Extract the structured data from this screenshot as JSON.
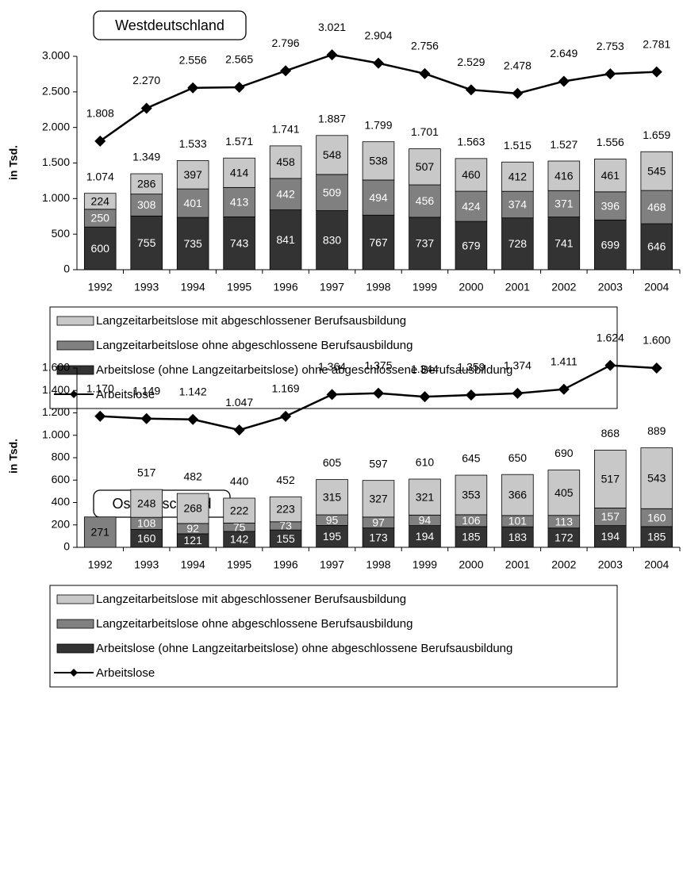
{
  "chart_data": [
    {
      "type": "bar",
      "title": "Westdeutschland",
      "y_label": "in Tsd.",
      "categories": [
        "1992",
        "1993",
        "1994",
        "1995",
        "1996",
        "1997",
        "1998",
        "1999",
        "2000",
        "2001",
        "2002",
        "2003",
        "2004"
      ],
      "series": [
        {
          "name": "Arbeitslose (ohne Langzeitarbeitslose) ohne abgeschlossene Berufsausbildung",
          "color": "#333333",
          "values": [
            600,
            755,
            735,
            743,
            841,
            830,
            767,
            737,
            679,
            728,
            741,
            699,
            646
          ]
        },
        {
          "name": "Langzeitarbeitslose ohne abgeschlossene Berufsausbildung",
          "color": "#808080",
          "values": [
            250,
            308,
            401,
            413,
            442,
            509,
            494,
            456,
            424,
            374,
            371,
            396,
            468
          ]
        },
        {
          "name": "Langzeitarbeitslose mit abgeschlossener Berufsausbildung",
          "color": "#c8c8c8",
          "values": [
            224,
            286,
            397,
            414,
            458,
            548,
            538,
            507,
            460,
            412,
            416,
            461,
            545
          ]
        },
        {
          "name": "Arbeitslose",
          "type": "line",
          "color": "#000000",
          "values": [
            1808,
            2270,
            2556,
            2565,
            2796,
            3021,
            2904,
            2756,
            2529,
            2478,
            2649,
            2753,
            2781
          ],
          "value_labels": [
            "1.808",
            "2.270",
            "2.556",
            "2.565",
            "2.796",
            "3.021",
            "2.904",
            "2.756",
            "2.529",
            "2.478",
            "2.649",
            "2.753",
            "2.781"
          ]
        }
      ],
      "totals": [
        1074,
        1349,
        1533,
        1571,
        1741,
        1887,
        1799,
        1701,
        1563,
        1515,
        1527,
        1556,
        1659
      ],
      "total_labels": [
        "1.074",
        "1.349",
        "1.533",
        "1.571",
        "1.741",
        "1.887",
        "1.799",
        "1.701",
        "1.563",
        "1.515",
        "1.527",
        "1.556",
        "1.659"
      ],
      "ylim": [
        0,
        3000
      ],
      "yticks": [
        0,
        500,
        {
          "value": 1000,
          "label": "1.000"
        },
        {
          "value": 1500,
          "label": "1.500"
        },
        {
          "value": 2000,
          "label": "2.000"
        },
        {
          "value": 2500,
          "label": "2.500"
        },
        {
          "value": 3000,
          "label": "3.000"
        }
      ]
    },
    {
      "type": "bar",
      "title": "Ostdeutschland",
      "y_label": "in Tsd.",
      "categories": [
        "1992",
        "1993",
        "1994",
        "1995",
        "1996",
        "1997",
        "1998",
        "1999",
        "2000",
        "2001",
        "2002",
        "2003",
        "2004"
      ],
      "series": [
        {
          "name": "Arbeitslose (ohne Langzeitarbeitslose) ohne abgeschlossene Berufsausbildung",
          "color": "#333333",
          "values": [
            null,
            160,
            121,
            142,
            155,
            195,
            173,
            194,
            185,
            183,
            172,
            194,
            185
          ]
        },
        {
          "name": "Langzeitarbeitslose ohne abgeschlossene Berufsausbildung",
          "color": "#808080",
          "values": [
            271,
            108,
            92,
            75,
            73,
            95,
            97,
            94,
            106,
            101,
            113,
            157,
            160
          ]
        },
        {
          "name": "Langzeitarbeitslose mit abgeschlossener Berufsausbildung",
          "color": "#c8c8c8",
          "values": [
            null,
            248,
            268,
            222,
            223,
            315,
            327,
            321,
            353,
            366,
            405,
            517,
            543
          ]
        },
        {
          "name": "Arbeitslose",
          "type": "line",
          "color": "#000000",
          "values": [
            1170,
            1149,
            1142,
            1047,
            1169,
            1364,
            1375,
            1344,
            1359,
            1374,
            1411,
            1624,
            1600
          ],
          "value_labels": [
            "1.170",
            "1.149",
            "1.142",
            "1.047",
            "1.169",
            "1.364",
            "1.375",
            "1.344",
            "1.359",
            "1.374",
            "1.411",
            "1.624",
            "1.600"
          ]
        }
      ],
      "totals": [
        null,
        517,
        482,
        440,
        452,
        605,
        597,
        610,
        645,
        650,
        690,
        868,
        889
      ],
      "ylim": [
        0,
        1600
      ],
      "yticks": [
        0,
        200,
        400,
        600,
        800,
        {
          "value": 1000,
          "label": "1.000"
        },
        {
          "value": 1200,
          "label": "1.200"
        },
        {
          "value": 1400,
          "label": "1.400"
        },
        {
          "value": 1600,
          "label": "1.600"
        }
      ]
    }
  ]
}
